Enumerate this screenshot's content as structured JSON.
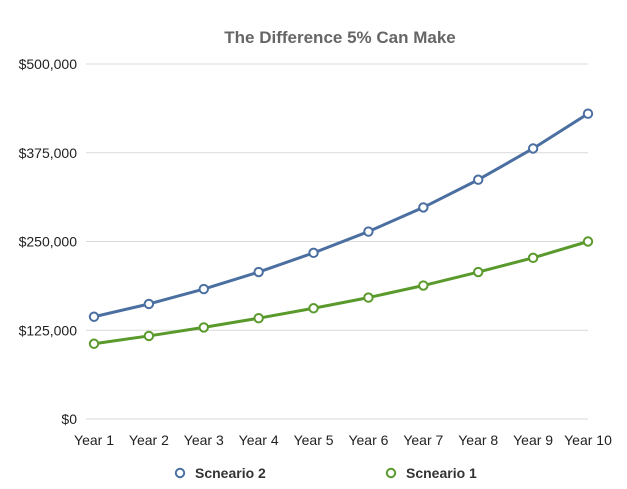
{
  "chart_data": {
    "type": "line",
    "title": "The Difference 5% Can Make",
    "xlabel": "",
    "ylabel": "",
    "categories": [
      "Year 1",
      "Year 2",
      "Year 3",
      "Year 4",
      "Year 5",
      "Year 6",
      "Year 7",
      "Year 8",
      "Year 9",
      "Year 10"
    ],
    "ylim": [
      0,
      500000
    ],
    "yticks": [
      0,
      125000,
      250000,
      375000,
      500000
    ],
    "ytick_labels": [
      "$0",
      "$125,000",
      "$250,000",
      "$375,000",
      "$500,000"
    ],
    "grid": true,
    "legend_position": "bottom",
    "series": [
      {
        "name": "Scneario 2",
        "color": "#4a6fa0",
        "values": [
          144000,
          162000,
          183000,
          207000,
          234000,
          264000,
          298000,
          337000,
          381000,
          430000
        ]
      },
      {
        "name": "Scneario 1",
        "color": "#5a9a2c",
        "values": [
          106000,
          117000,
          129000,
          142000,
          156000,
          171000,
          188000,
          207000,
          227000,
          250000
        ]
      }
    ]
  }
}
